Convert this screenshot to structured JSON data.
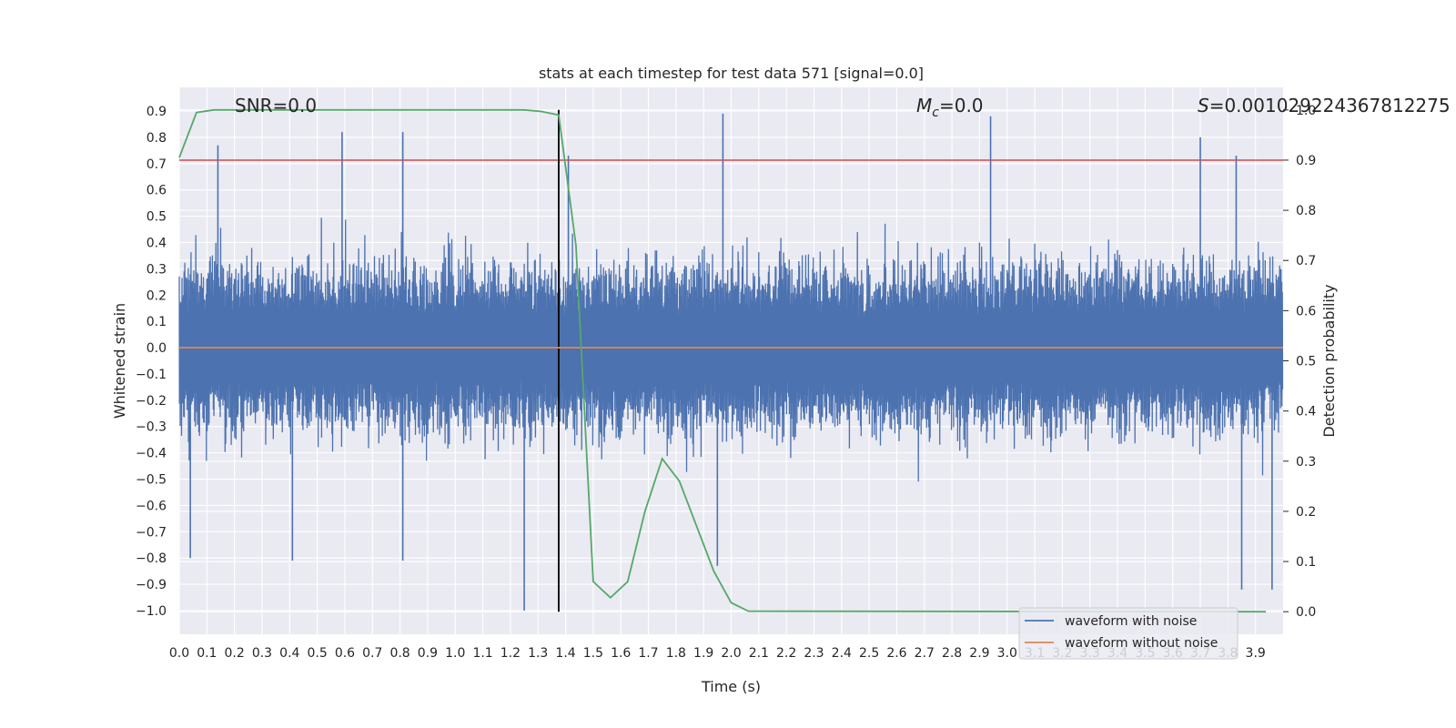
{
  "chart_data": {
    "type": "line",
    "title": "stats at each timestep for test data 571 [signal=0.0]",
    "xlabel": "Time (s)",
    "ylabel": "Whitened strain",
    "y2label": "Detection probability",
    "xlim": [
      0.0,
      4.0
    ],
    "ylim": [
      -1.09,
      0.99
    ],
    "y2lim": [
      -0.045,
      1.045
    ],
    "grid": true,
    "legend_position": "lower-right",
    "x_ticks": [
      "0.0",
      "0.1",
      "0.2",
      "0.3",
      "0.4",
      "0.5",
      "0.6",
      "0.7",
      "0.8",
      "0.9",
      "1.0",
      "1.1",
      "1.2",
      "1.3",
      "1.4",
      "1.5",
      "1.6",
      "1.7",
      "1.8",
      "1.9",
      "2.0",
      "2.1",
      "2.2",
      "2.3",
      "2.4",
      "2.5",
      "2.6",
      "2.7",
      "2.8",
      "2.9",
      "3.0",
      "3.1",
      "3.2",
      "3.3",
      "3.4",
      "3.5",
      "3.6",
      "3.7",
      "3.8",
      "3.9"
    ],
    "y_ticks": [
      "0.9",
      "0.8",
      "0.7",
      "0.6",
      "0.5",
      "0.4",
      "0.3",
      "0.2",
      "0.1",
      "0.0",
      "−0.1",
      "−0.2",
      "−0.3",
      "−0.4",
      "−0.5",
      "−0.6",
      "−0.7",
      "−0.8",
      "−0.9",
      "−1.0"
    ],
    "y2_ticks": [
      "1.0",
      "0.9",
      "0.8",
      "0.7",
      "0.6",
      "0.5",
      "0.4",
      "0.3",
      "0.2",
      "0.1",
      "0.0"
    ],
    "annotations": {
      "snr": "SNR=0.0",
      "mc_symbol": "M",
      "mc_sub": "c",
      "mc_value": "=0.0",
      "s_symbol": "S",
      "s_value": "=0.00102922436781227​5"
    },
    "series": [
      {
        "name": "waveform with noise",
        "color": "#4c72b0",
        "kind": "dense-noise",
        "envelope_low": -1.0,
        "envelope_high": 0.9,
        "spikes": [
          {
            "x": 0.14,
            "y": 0.77
          },
          {
            "x": 0.59,
            "y": 0.82
          },
          {
            "x": 0.81,
            "y": 0.82
          },
          {
            "x": 1.41,
            "y": 0.73
          },
          {
            "x": 1.97,
            "y": 0.89
          },
          {
            "x": 2.94,
            "y": 0.88
          },
          {
            "x": 3.7,
            "y": 0.8
          },
          {
            "x": 3.83,
            "y": 0.73
          },
          {
            "x": 1.25,
            "y": -1.0
          },
          {
            "x": 0.04,
            "y": -0.8
          },
          {
            "x": 0.81,
            "y": -0.81
          },
          {
            "x": 3.85,
            "y": -0.92
          },
          {
            "x": 3.96,
            "y": -0.92
          },
          {
            "x": 0.41,
            "y": -0.81
          },
          {
            "x": 1.95,
            "y": -0.83
          }
        ]
      },
      {
        "name": "waveform without noise",
        "color": "#dd8452",
        "points": [
          {
            "x": 0.0,
            "y": 0.0
          },
          {
            "x": 4.0,
            "y": 0.0
          }
        ]
      },
      {
        "name": "detection probability",
        "color": "#55a868",
        "axis": "right",
        "points": [
          {
            "x": 0.0,
            "y": 0.905
          },
          {
            "x": 0.0625,
            "y": 0.995
          },
          {
            "x": 0.125,
            "y": 1.0
          },
          {
            "x": 0.1875,
            "y": 1.0
          },
          {
            "x": 1.25,
            "y": 1.0
          },
          {
            "x": 1.3125,
            "y": 0.997
          },
          {
            "x": 1.375,
            "y": 0.99
          },
          {
            "x": 1.4375,
            "y": 0.73
          },
          {
            "x": 1.5,
            "y": 0.06
          },
          {
            "x": 1.5625,
            "y": 0.028
          },
          {
            "x": 1.625,
            "y": 0.06
          },
          {
            "x": 1.6875,
            "y": 0.2
          },
          {
            "x": 1.75,
            "y": 0.305
          },
          {
            "x": 1.8125,
            "y": 0.26
          },
          {
            "x": 1.875,
            "y": 0.17
          },
          {
            "x": 1.9375,
            "y": 0.08
          },
          {
            "x": 2.0,
            "y": 0.018
          },
          {
            "x": 2.0625,
            "y": 0.001
          },
          {
            "x": 3.9375,
            "y": 0.0
          }
        ]
      }
    ],
    "reference_lines": [
      {
        "kind": "horizontal",
        "axis": "right",
        "y": 0.9,
        "color": "#c44e52"
      },
      {
        "kind": "vertical",
        "x": 1.375,
        "color": "#000000"
      }
    ],
    "legend": [
      {
        "label": "waveform with noise",
        "color": "#4c72b0"
      },
      {
        "label": "waveform without noise",
        "color": "#dd8452"
      }
    ],
    "colors": {
      "plot_background": "#eaeaf2",
      "grid": "#ffffff",
      "text": "#262626"
    }
  }
}
